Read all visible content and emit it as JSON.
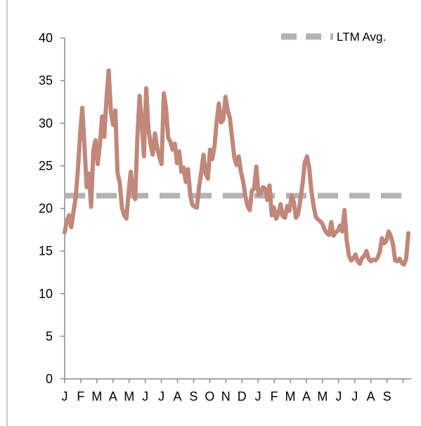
{
  "chart_data": {
    "type": "line",
    "title": "",
    "xlabel": "",
    "ylabel": "",
    "ylim": [
      0,
      40
    ],
    "yticks": [
      0,
      5,
      10,
      15,
      20,
      25,
      30,
      35,
      40
    ],
    "x_tick_labels": [
      "J",
      "F",
      "M",
      "A",
      "M",
      "J",
      "J",
      "A",
      "S",
      "O",
      "N",
      "D",
      "J",
      "F",
      "M",
      "A",
      "M",
      "J",
      "J",
      "A",
      "S"
    ],
    "legend": {
      "position": "top-right",
      "entries": [
        "LTM Avg."
      ]
    },
    "grid": false,
    "series": [
      {
        "name": "",
        "color": "#c0877a",
        "values": [
          17.2,
          18.5,
          19.2,
          17.8,
          19.6,
          21.3,
          24.5,
          28.6,
          31.8,
          27.3,
          22.5,
          24.1,
          20.2,
          26.8,
          28.0,
          25.2,
          27.6,
          30.8,
          28.4,
          33.0,
          36.2,
          31.3,
          29.8,
          31.5,
          24.2,
          23.0,
          20.1,
          19.2,
          18.8,
          21.8,
          24.3,
          22.0,
          21.1,
          28.2,
          33.2,
          30.0,
          26.1,
          34.1,
          29.4,
          27.5,
          26.3,
          28.8,
          27.1,
          26.0,
          25.2,
          33.5,
          31.8,
          28.3,
          27.8,
          26.9,
          27.6,
          25.3,
          26.7,
          24.3,
          24.8,
          23.1,
          24.6,
          21.5,
          20.4,
          20.2,
          20.1,
          22.5,
          24.2,
          26.3,
          24.1,
          23.5,
          26.9,
          25.8,
          27.3,
          30.2,
          32.3,
          30.1,
          30.4,
          33.1,
          31.5,
          30.6,
          28.3,
          26.0,
          25.1,
          26.1,
          24.3,
          23.2,
          21.5,
          20.3,
          19.8,
          22.1,
          22.3,
          24.9,
          21.6,
          21.8,
          22.5,
          22.3,
          21.0,
          22.7,
          19.2,
          20.1,
          18.8,
          19.4,
          20.5,
          19.1,
          18.9,
          20.3,
          19.7,
          21.5,
          20.8,
          18.9,
          19.4,
          21.0,
          22.9,
          25.4,
          26.1,
          24.8,
          22.0,
          20.3,
          19.0,
          18.7,
          18.5,
          18.2,
          17.5,
          17.1,
          16.9,
          18.4,
          16.8,
          17.2,
          17.4,
          18.0,
          17.3,
          19.8,
          16.3,
          14.5,
          13.9,
          14.1,
          14.6,
          13.8,
          13.5,
          14.2,
          14.4,
          15.0,
          14.1,
          13.8,
          14.0,
          13.9,
          14.2,
          14.9,
          16.5,
          15.9,
          16.2,
          17.3,
          16.8,
          15.8,
          13.9,
          13.8,
          14.1,
          13.6,
          13.4,
          14.1,
          17.1
        ]
      },
      {
        "name": "LTM Avg.",
        "color": "#b3b3b3",
        "style": "dashed",
        "values": [
          21.5
        ]
      }
    ]
  }
}
